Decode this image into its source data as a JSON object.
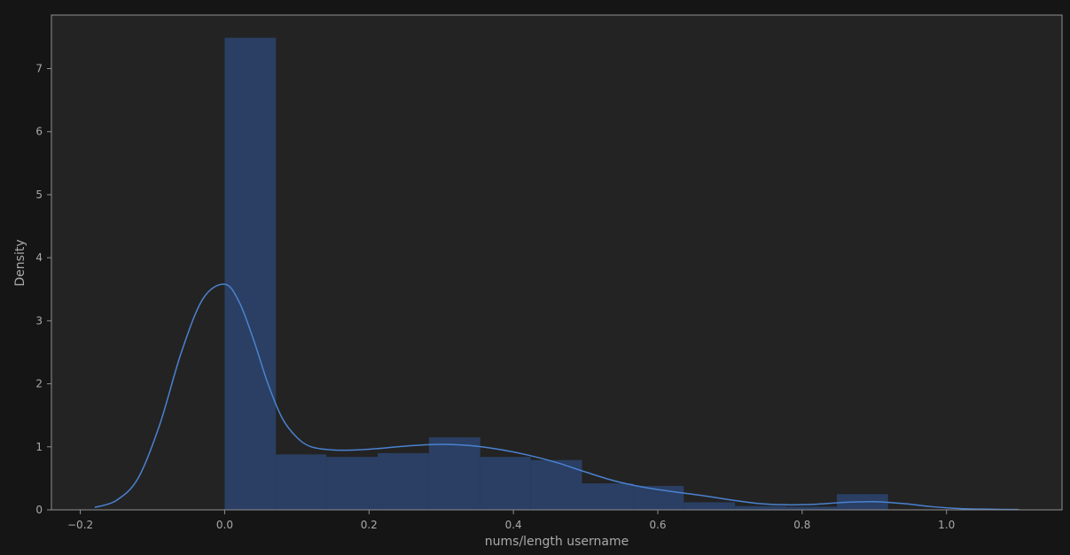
{
  "chart_data": {
    "type": "histogram",
    "title": "",
    "xlabel": "nums/length username",
    "ylabel": "Density",
    "xlim": [
      -0.24,
      1.16
    ],
    "ylim": [
      0,
      7.85
    ],
    "xticks": [
      -0.2,
      0.0,
      0.2,
      0.4,
      0.6,
      0.8,
      1.0
    ],
    "xtick_labels": [
      "−0.2",
      "0.0",
      "0.2",
      "0.4",
      "0.6",
      "0.8",
      "1.0"
    ],
    "yticks": [
      0,
      1,
      2,
      3,
      4,
      5,
      6,
      7
    ],
    "ytick_labels": [
      "0",
      "1",
      "2",
      "3",
      "4",
      "5",
      "6",
      "7"
    ],
    "grid": false,
    "legend": "none",
    "bins": [
      {
        "x0": 0.0,
        "x1": 0.071,
        "density": 7.49
      },
      {
        "x0": 0.071,
        "x1": 0.141,
        "density": 0.88
      },
      {
        "x0": 0.141,
        "x1": 0.212,
        "density": 0.84
      },
      {
        "x0": 0.212,
        "x1": 0.283,
        "density": 0.9
      },
      {
        "x0": 0.283,
        "x1": 0.354,
        "density": 1.15
      },
      {
        "x0": 0.354,
        "x1": 0.424,
        "density": 0.84
      },
      {
        "x0": 0.424,
        "x1": 0.495,
        "density": 0.79
      },
      {
        "x0": 0.495,
        "x1": 0.566,
        "density": 0.42
      },
      {
        "x0": 0.566,
        "x1": 0.636,
        "density": 0.38
      },
      {
        "x0": 0.636,
        "x1": 0.707,
        "density": 0.12
      },
      {
        "x0": 0.707,
        "x1": 0.778,
        "density": 0.06
      },
      {
        "x0": 0.778,
        "x1": 0.848,
        "density": 0.05
      },
      {
        "x0": 0.848,
        "x1": 0.919,
        "density": 0.25
      }
    ],
    "kde": {
      "x": [
        -0.18,
        -0.15,
        -0.12,
        -0.09,
        -0.06,
        -0.03,
        0.0,
        0.02,
        0.04,
        0.06,
        0.08,
        0.1,
        0.12,
        0.15,
        0.18,
        0.22,
        0.26,
        0.3,
        0.34,
        0.38,
        0.42,
        0.46,
        0.5,
        0.54,
        0.58,
        0.62,
        0.66,
        0.7,
        0.74,
        0.78,
        0.82,
        0.86,
        0.9,
        0.94,
        0.98,
        1.02,
        1.06,
        1.1
      ],
      "y": [
        0.04,
        0.15,
        0.5,
        1.35,
        2.5,
        3.35,
        3.58,
        3.3,
        2.7,
        2.0,
        1.45,
        1.15,
        1.0,
        0.95,
        0.95,
        0.98,
        1.02,
        1.04,
        1.02,
        0.96,
        0.87,
        0.75,
        0.6,
        0.46,
        0.36,
        0.29,
        0.23,
        0.16,
        0.1,
        0.08,
        0.09,
        0.12,
        0.13,
        0.1,
        0.05,
        0.02,
        0.01,
        0.005
      ]
    },
    "colors": {
      "background": "#232323",
      "figure_background": "#151515",
      "spine": "#909090",
      "text": "#a9a9a9",
      "bar_fill": "#2a3f63",
      "kde_line": "#4a82d0"
    }
  }
}
